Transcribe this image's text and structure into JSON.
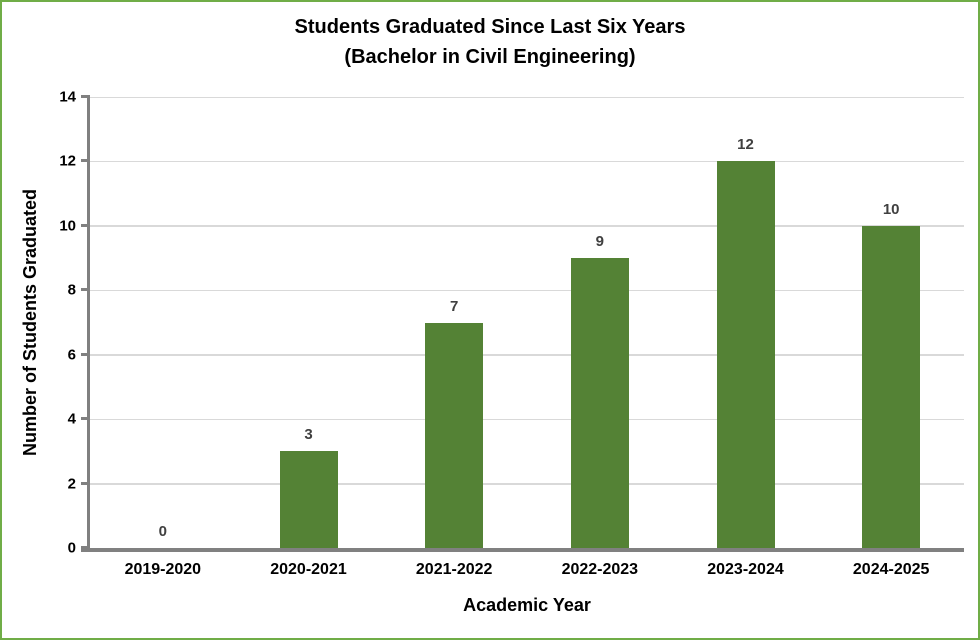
{
  "chart_data": {
    "type": "bar",
    "title": "Students Graduated Since Last Six Years",
    "subtitle": "(Bachelor in Civil Engineering)",
    "categories": [
      "2019-2020",
      "2020-2021",
      "2021-2022",
      "2022-2023",
      "2023-2024",
      "2024-2025"
    ],
    "values": [
      0,
      3,
      7,
      9,
      12,
      10
    ],
    "xlabel": "Academic Year",
    "ylabel": "Number of Students Graduated",
    "ylim": [
      0,
      14
    ],
    "ytick_step": 2,
    "grid": true,
    "legend_position": "none",
    "colors": {
      "bar": "#548235",
      "frame_border": "#70AD47",
      "gridline": "#D9D9D9",
      "axis_line": "#808080",
      "value_label": "#404040",
      "text": "#000000"
    }
  }
}
